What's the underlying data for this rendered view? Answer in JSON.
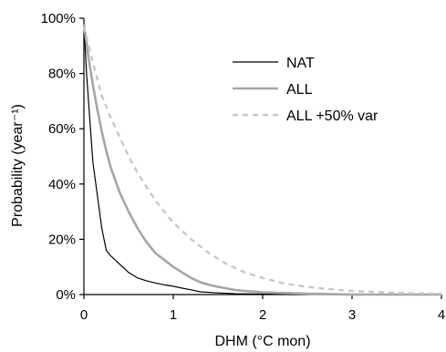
{
  "chart_data": {
    "type": "line",
    "xlabel": "DHM (°C mon)",
    "ylabel": "Probability (year⁻¹)",
    "xlim": [
      0,
      4
    ],
    "ylim": [
      0,
      100
    ],
    "x_ticks": [
      0,
      1,
      2,
      3,
      4
    ],
    "x_tick_labels": [
      "0",
      "1",
      "2",
      "3",
      "4"
    ],
    "y_ticks": [
      0,
      20,
      40,
      60,
      80,
      100
    ],
    "y_tick_labels": [
      "0%",
      "20%",
      "40%",
      "60%",
      "80%",
      "100%"
    ],
    "grid": false,
    "legend_position": "top-right",
    "series": [
      {
        "name": "NAT",
        "color": "#000000",
        "style": "solid",
        "x": [
          0,
          0.03,
          0.06,
          0.1,
          0.15,
          0.2,
          0.25,
          0.3,
          0.4,
          0.5,
          0.6,
          0.7,
          0.8,
          0.9,
          1.0,
          1.1,
          1.2,
          1.3,
          1.5,
          1.7,
          2.0,
          2.5,
          3.0,
          4.0
        ],
        "y": [
          98,
          80,
          66,
          48,
          36,
          24,
          16,
          14,
          11,
          8,
          6,
          5,
          4.2,
          3.5,
          3,
          2.3,
          1.7,
          1.0,
          0.6,
          0.3,
          0.15,
          0.05,
          0,
          0
        ]
      },
      {
        "name": "ALL",
        "color": "#a6a6a6",
        "style": "solid",
        "x": [
          0,
          0.05,
          0.1,
          0.15,
          0.2,
          0.25,
          0.3,
          0.4,
          0.5,
          0.6,
          0.7,
          0.8,
          0.9,
          1.0,
          1.1,
          1.2,
          1.3,
          1.4,
          1.5,
          1.7,
          2.0,
          2.5,
          3.0,
          4.0
        ],
        "y": [
          98,
          86,
          76,
          67,
          59,
          52,
          46,
          37,
          30,
          24,
          19,
          15,
          12.5,
          10,
          8,
          6,
          4.5,
          3.5,
          2.8,
          1.6,
          0.8,
          0.3,
          0,
          0
        ]
      },
      {
        "name": "ALL +50% var",
        "color": "#c8c8c8",
        "style": "dashed",
        "x": [
          0,
          0.1,
          0.2,
          0.3,
          0.4,
          0.5,
          0.6,
          0.7,
          0.8,
          0.9,
          1.0,
          1.2,
          1.4,
          1.6,
          1.8,
          2.0,
          2.2,
          2.4,
          2.6,
          2.8,
          3.0,
          3.5,
          4.0
        ],
        "y": [
          97,
          84,
          72,
          64,
          57,
          50,
          44,
          39,
          34,
          30,
          26,
          20,
          15,
          11,
          8,
          6,
          4.3,
          3.2,
          2.4,
          1.8,
          1.3,
          0.6,
          0.3
        ]
      }
    ]
  }
}
